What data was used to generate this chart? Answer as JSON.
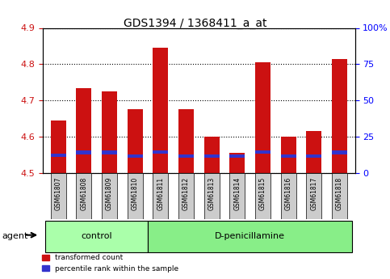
{
  "title": "GDS1394 / 1368411_a_at",
  "samples": [
    "GSM61807",
    "GSM61808",
    "GSM61809",
    "GSM61810",
    "GSM61811",
    "GSM61812",
    "GSM61813",
    "GSM61814",
    "GSM61815",
    "GSM61816",
    "GSM61817",
    "GSM61818"
  ],
  "red_tops": [
    4.645,
    4.735,
    4.725,
    4.675,
    4.845,
    4.675,
    4.6,
    4.555,
    4.805,
    4.6,
    4.615,
    4.815
  ],
  "blue_tops": [
    4.549,
    4.557,
    4.557,
    4.547,
    4.558,
    4.547,
    4.547,
    4.547,
    4.558,
    4.547,
    4.547,
    4.557
  ],
  "bar_bottom": 4.5,
  "ylim_left": [
    4.5,
    4.9
  ],
  "ylim_right": [
    0,
    100
  ],
  "yticks_left": [
    4.5,
    4.6,
    4.7,
    4.8,
    4.9
  ],
  "yticks_right": [
    0,
    25,
    50,
    75,
    100
  ],
  "ytick_labels_right": [
    "0",
    "25",
    "50",
    "75",
    "100%"
  ],
  "control_samples": 4,
  "control_label": "control",
  "treatment_label": "D-penicillamine",
  "agent_label": "agent",
  "red_color": "#cc1111",
  "blue_color": "#3333cc",
  "tick_bg": "#cccccc",
  "bar_width": 0.6,
  "legend_red": "transformed count",
  "legend_blue": "percentile rank within the sample"
}
